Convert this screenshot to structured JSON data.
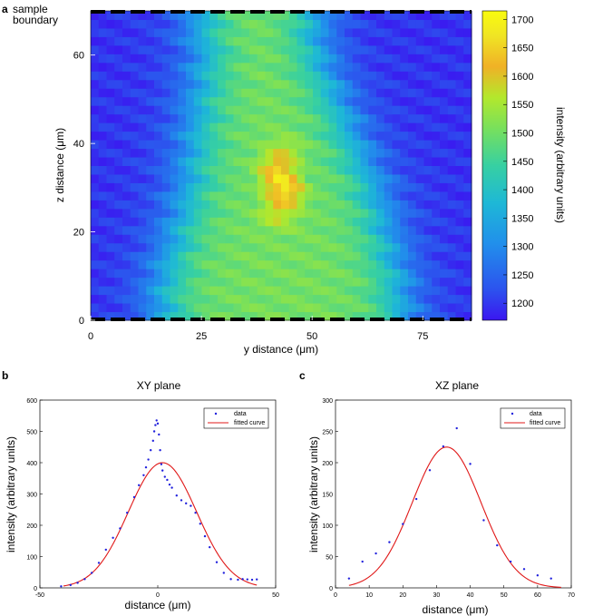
{
  "figure": {
    "panel_letters": [
      "a",
      "b",
      "c"
    ],
    "boundary_label_line1": "sample",
    "boundary_label_line2": "boundary"
  },
  "chart_data": [
    {
      "panel": "a",
      "type": "heatmap",
      "xlabel": "y distance (μm)",
      "ylabel": "z distance (μm)",
      "xlim": [
        0,
        86
      ],
      "ylim": [
        0,
        70
      ],
      "xticks": [
        "0",
        "25",
        "50",
        "75"
      ],
      "xtick_values": [
        0,
        25,
        50,
        75
      ],
      "yticks": [
        "0",
        "20",
        "40",
        "60"
      ],
      "ytick_values": [
        0,
        20,
        40,
        60
      ],
      "colorbar": {
        "label": "intensity (arbitrary units)",
        "min": 1170,
        "max": 1715,
        "ticks": [
          "1200",
          "1250",
          "1300",
          "1350",
          "1400",
          "1450",
          "1500",
          "1550",
          "1600",
          "1650",
          "1700"
        ],
        "tick_values": [
          1200,
          1250,
          1300,
          1350,
          1400,
          1450,
          1500,
          1550,
          1600,
          1650,
          1700
        ],
        "colormap": "parula"
      },
      "boundary_marker": "dashed black bars at top and bottom"
    },
    {
      "panel": "b",
      "type": "scatter",
      "title": "XY plane",
      "xlabel": "distance (μm)",
      "ylabel": "intensity (arbitrary units)",
      "xlim": [
        -50,
        50
      ],
      "ylim": [
        0,
        600
      ],
      "xticks": [
        "-50",
        "0",
        "50"
      ],
      "xtick_values": [
        -50,
        0,
        50
      ],
      "yticks": [
        "0",
        "100",
        "200",
        "300",
        "400",
        "500",
        "600"
      ],
      "ytick_values": [
        0,
        100,
        200,
        300,
        400,
        500,
        600
      ],
      "legend": [
        "data",
        "fitted curve"
      ],
      "legend_position": "top-right",
      "series": [
        {
          "name": "data",
          "style": "blue dots",
          "x": [
            -41,
            -37,
            -34,
            -31,
            -28,
            -25,
            -22,
            -19,
            -16,
            -13,
            -10,
            -8,
            -6,
            -5,
            -4,
            -3,
            -2,
            -1.5,
            -1,
            -0.5,
            0,
            0.5,
            1,
            1.5,
            2,
            3,
            4,
            5,
            6,
            8,
            10,
            12,
            14,
            16,
            18,
            20,
            22,
            25,
            28,
            31,
            34,
            36,
            38,
            40,
            42
          ],
          "y": [
            5,
            9,
            16,
            28,
            48,
            80,
            122,
            160,
            190,
            240,
            290,
            328,
            360,
            385,
            410,
            440,
            470,
            500,
            520,
            535,
            525,
            490,
            440,
            395,
            375,
            355,
            345,
            330,
            320,
            295,
            280,
            270,
            262,
            240,
            205,
            165,
            130,
            82,
            48,
            28,
            26,
            28,
            27,
            26,
            27
          ]
        },
        {
          "name": "fitted curve",
          "style": "red line",
          "gaussian": {
            "amplitude": 400,
            "center": 2,
            "sigma": 14.5,
            "offset": 0
          },
          "x_range": [
            -40,
            42
          ]
        }
      ]
    },
    {
      "panel": "c",
      "type": "scatter",
      "title": "XZ plane",
      "xlabel": "distance (μm)",
      "ylabel": "intensity (arbitrary units)",
      "xlim": [
        0,
        70
      ],
      "ylim": [
        0,
        300
      ],
      "xticks": [
        "0",
        "10",
        "20",
        "30",
        "40",
        "50",
        "60",
        "70"
      ],
      "xtick_values": [
        0,
        10,
        20,
        30,
        40,
        50,
        60,
        70
      ],
      "yticks": [
        "0",
        "50",
        "100",
        "200",
        "250",
        "300"
      ],
      "ytick_values": [
        0,
        50,
        100,
        200,
        250,
        300
      ],
      "extra_tick_label": "150",
      "extra_tick_value": 150,
      "legend": [
        "data",
        "fitted curve"
      ],
      "legend_position": "top-right",
      "series": [
        {
          "name": "data",
          "style": "blue dots",
          "x": [
            4,
            8,
            12,
            16,
            20,
            24,
            28,
            32,
            36,
            40,
            44,
            48,
            52,
            56,
            60,
            64
          ],
          "y": [
            15,
            42,
            55,
            73,
            102,
            142,
            188,
            226,
            255,
            198,
            108,
            68,
            42,
            30,
            20,
            15
          ]
        },
        {
          "name": "fitted curve",
          "style": "red line",
          "gaussian": {
            "amplitude": 225,
            "center": 33,
            "sigma": 10.2,
            "offset": 0
          },
          "x_range": [
            4,
            67
          ]
        }
      ]
    }
  ]
}
